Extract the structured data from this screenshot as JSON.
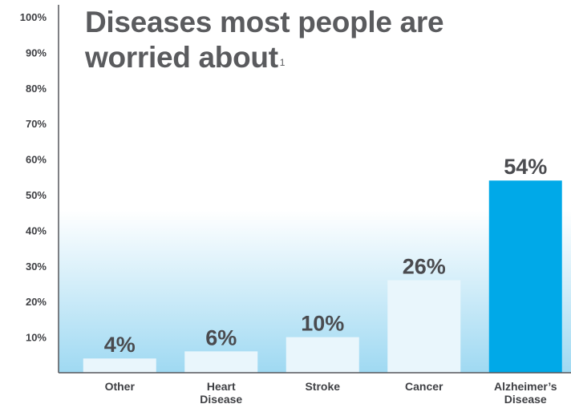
{
  "colors": {
    "highlight_bar": "#00a9e8",
    "muted_bar": "#e9f6fc",
    "backdrop_top": "#ffffff",
    "backdrop_bottom": "#9fd9f2",
    "axis": "#55575b",
    "text": "#4a4b4f"
  },
  "chart_data": {
    "type": "bar",
    "title_line1": "Diseases most people are",
    "title_line2": "worried about",
    "title_footnote": "1",
    "categories": [
      [
        "Other"
      ],
      [
        "Heart",
        "Disease"
      ],
      [
        "Stroke"
      ],
      [
        "Cancer"
      ],
      [
        "Alzheimer’s",
        "Disease"
      ]
    ],
    "values": [
      4,
      6,
      10,
      26,
      54
    ],
    "data_labels": [
      "4%",
      "6%",
      "10%",
      "26%",
      "54%"
    ],
    "highlight_index": 4,
    "ylim": [
      0,
      100
    ],
    "yticks": [
      {
        "value": 10,
        "label": "10%"
      },
      {
        "value": 20,
        "label": "20%"
      },
      {
        "value": 30,
        "label": "30%"
      },
      {
        "value": 40,
        "label": "40%"
      },
      {
        "value": 50,
        "label": "50%"
      },
      {
        "value": 60,
        "label": "60%"
      },
      {
        "value": 70,
        "label": "70%"
      },
      {
        "value": 80,
        "label": "80%"
      },
      {
        "value": 90,
        "label": "90%"
      },
      {
        "value": 100,
        "label": "100%"
      }
    ],
    "grid": false,
    "legend": "none"
  }
}
